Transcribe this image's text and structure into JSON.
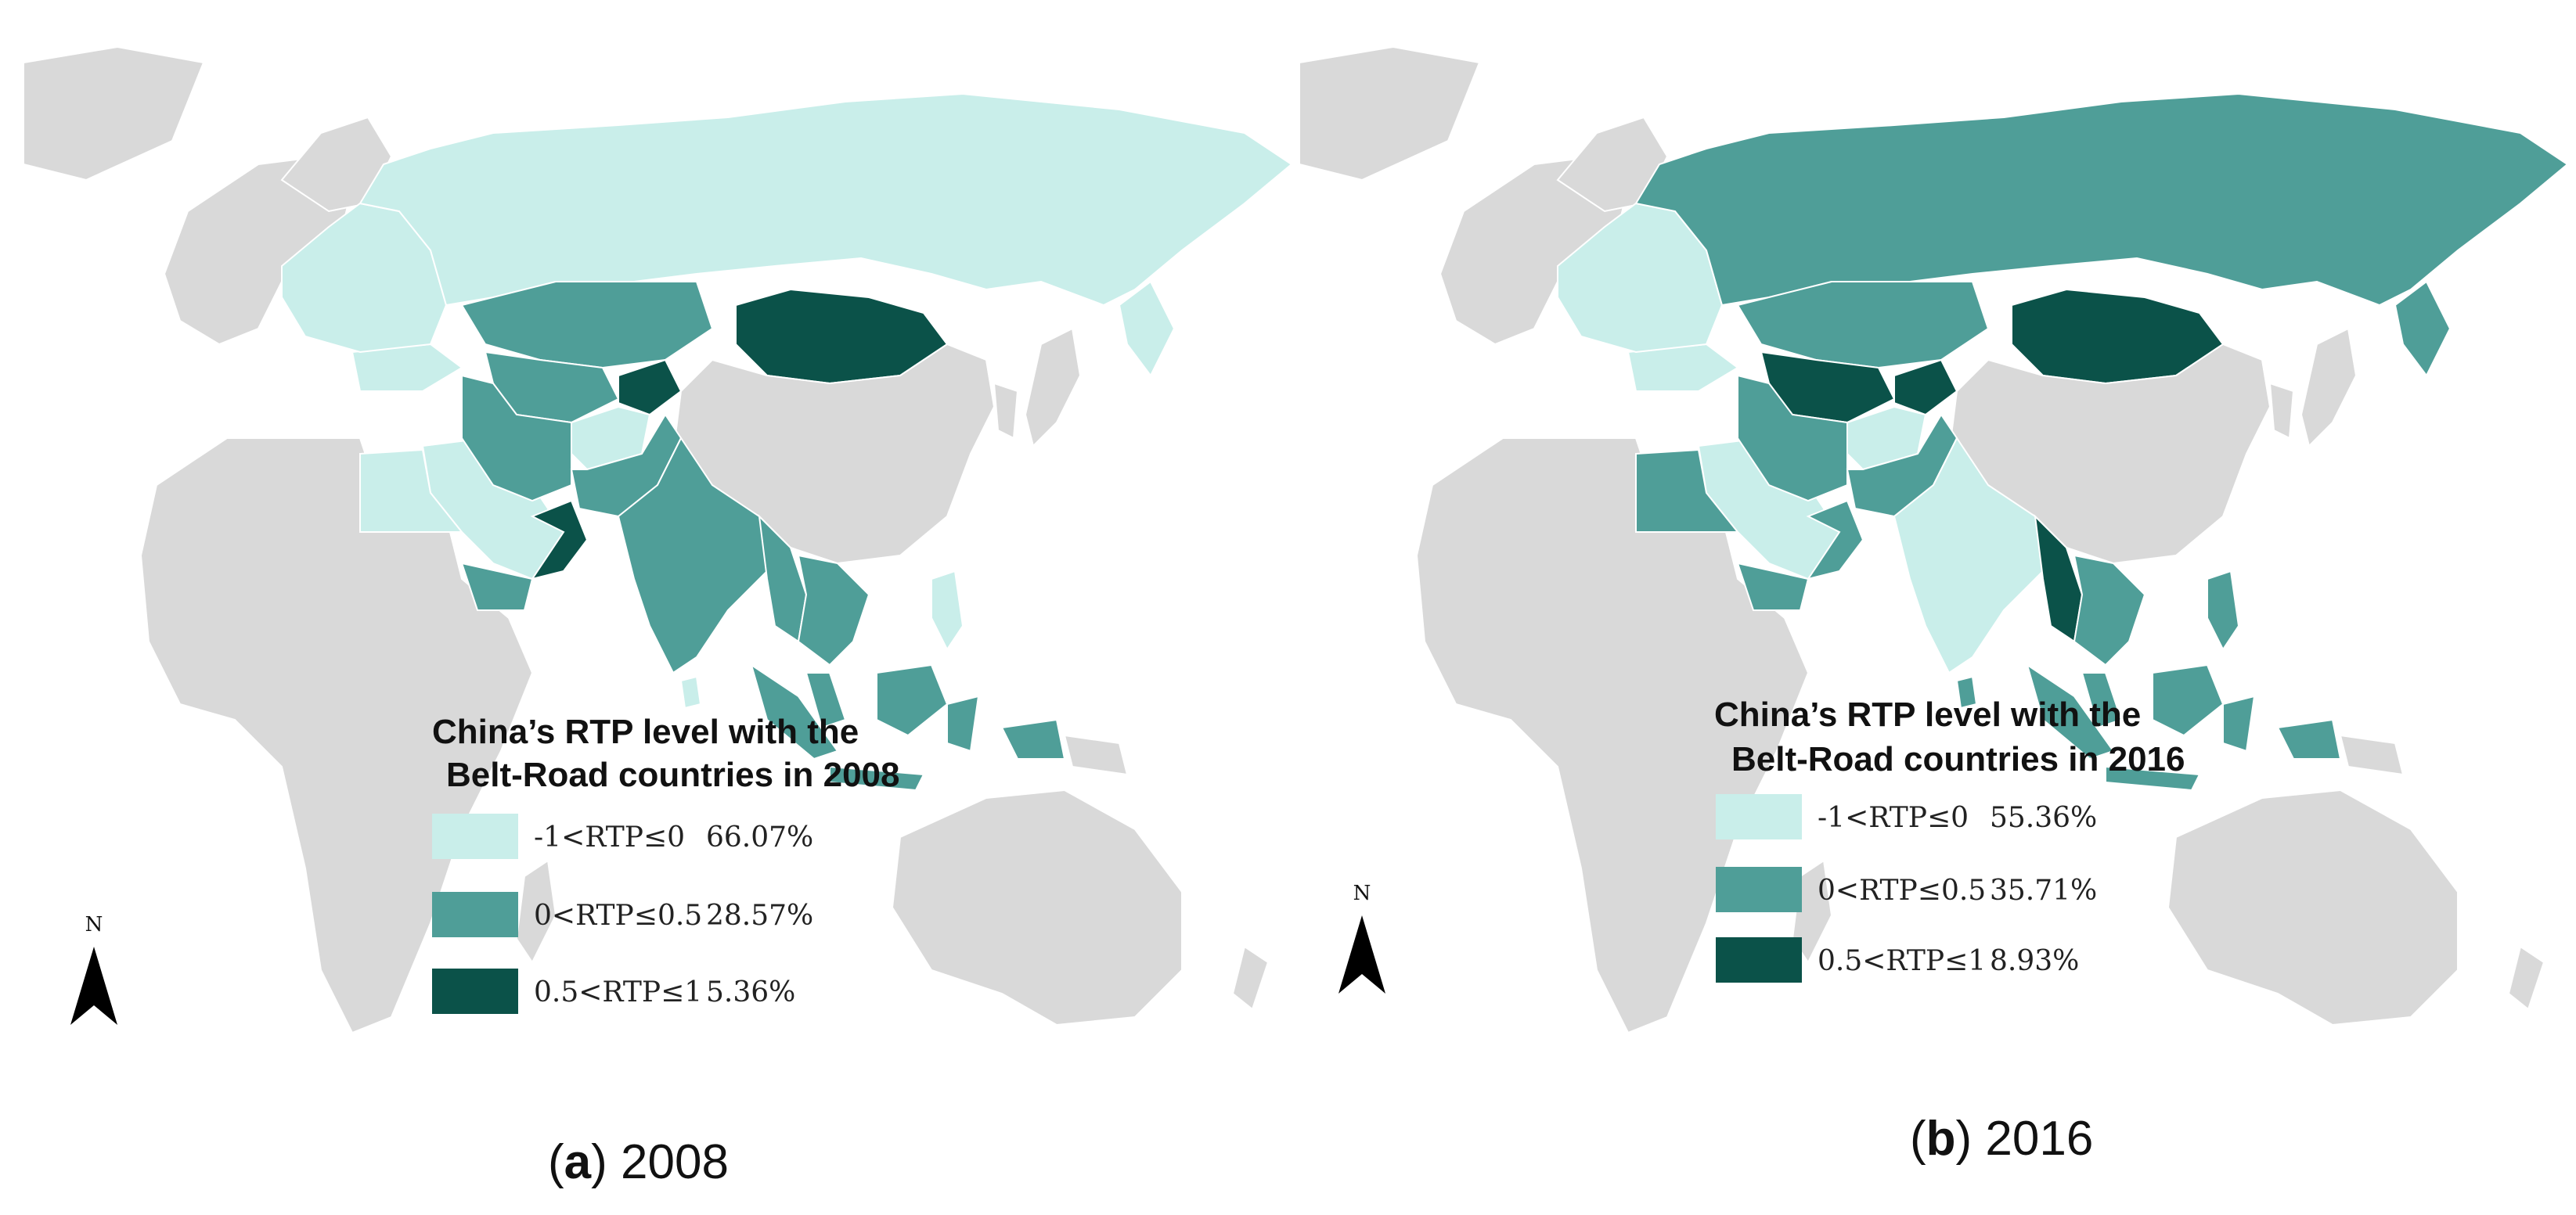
{
  "colors": {
    "ocean": "#ffffff",
    "land_other": "#d9d9d9",
    "border": "#ffffff",
    "level_low": "#c9eeea",
    "level_mid": "#4f9e98",
    "level_high": "#0b5249"
  },
  "maps": [
    {
      "caption_letter": "a",
      "caption_year": "2008",
      "legend_title_line1": "China’s RTP level with the",
      "legend_title_line2": "Belt-Road countries in 2008",
      "north_label": "N",
      "legend": [
        {
          "range": "-1<RTP≤0",
          "percent": "66.07%",
          "level": "low"
        },
        {
          "range": "0<RTP≤0.5",
          "percent": "28.57%",
          "level": "mid"
        },
        {
          "range": "0.5<RTP≤1",
          "percent": "5.36%",
          "level": "high"
        }
      ],
      "regions": {
        "russia": "low",
        "mongolia": "high",
        "kazakhstan": "mid",
        "central_asia": "mid",
        "east_europe": "low",
        "turkey": "low",
        "iran": "mid",
        "afghanistan": "low",
        "pakistan": "mid",
        "arabia": "low",
        "oman": "high",
        "yemen": "mid",
        "egypt": "low",
        "india": "mid",
        "myanmar": "mid",
        "indochina": "mid",
        "malaysia": "mid",
        "indonesia": "mid",
        "philippines": "low",
        "srilanka": "low",
        "kyrgyz": "high"
      }
    },
    {
      "caption_letter": "b",
      "caption_year": "2016",
      "legend_title_line1": "China’s RTP level with the",
      "legend_title_line2": "Belt-Road countries in 2016",
      "north_label": "N",
      "legend": [
        {
          "range": "-1<RTP≤0",
          "percent": "55.36%",
          "level": "low"
        },
        {
          "range": "0<RTP≤0.5",
          "percent": "35.71%",
          "level": "mid"
        },
        {
          "range": "0.5<RTP≤1",
          "percent": "8.93%",
          "level": "high"
        }
      ],
      "regions": {
        "russia": "mid",
        "mongolia": "high",
        "kazakhstan": "mid",
        "central_asia": "high",
        "east_europe": "low",
        "turkey": "low",
        "iran": "mid",
        "afghanistan": "low",
        "pakistan": "mid",
        "arabia": "low",
        "oman": "mid",
        "yemen": "mid",
        "egypt": "mid",
        "india": "low",
        "myanmar": "high",
        "indochina": "mid",
        "malaysia": "mid",
        "indonesia": "mid",
        "philippines": "mid",
        "srilanka": "mid",
        "kyrgyz": "high"
      }
    }
  ]
}
